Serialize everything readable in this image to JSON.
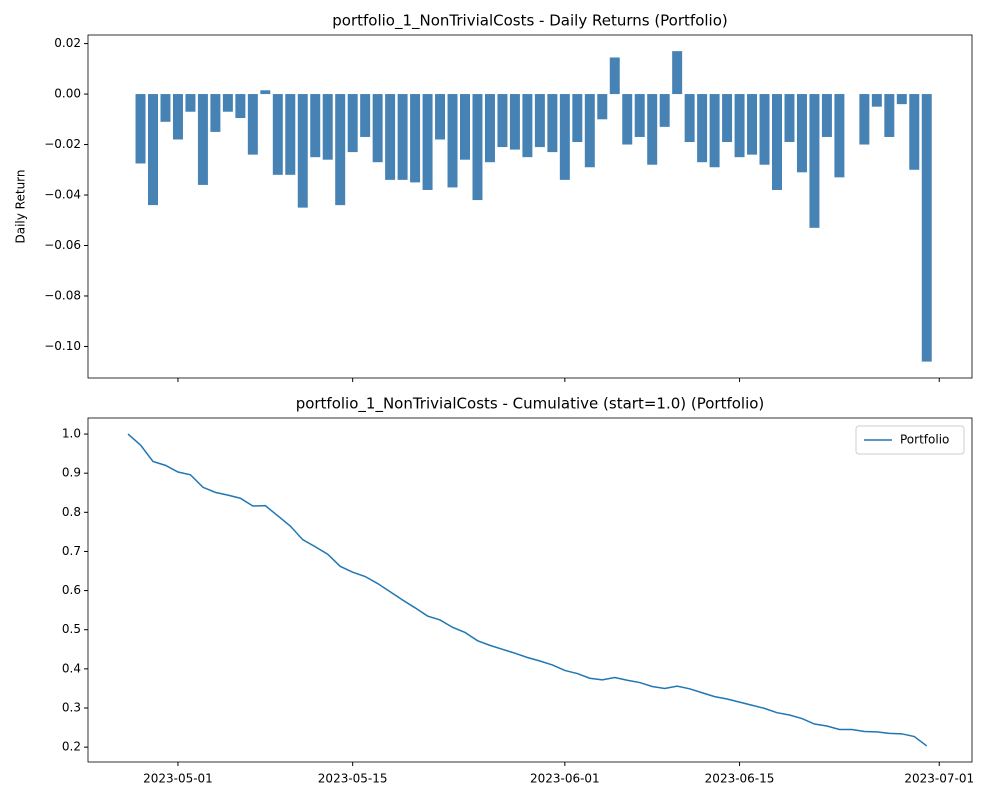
{
  "chart_data": [
    {
      "type": "bar",
      "title": "portfolio_1_NonTrivialCosts - Daily Returns (Portfolio)",
      "y_label": "Daily Return",
      "color": "#4682b4",
      "x": [
        "2023-04-28",
        "2023-04-29",
        "2023-04-30",
        "2023-05-01",
        "2023-05-02",
        "2023-05-03",
        "2023-05-04",
        "2023-05-05",
        "2023-05-06",
        "2023-05-07",
        "2023-05-08",
        "2023-05-09",
        "2023-05-10",
        "2023-05-11",
        "2023-05-12",
        "2023-05-13",
        "2023-05-14",
        "2023-05-15",
        "2023-05-16",
        "2023-05-17",
        "2023-05-18",
        "2023-05-19",
        "2023-05-20",
        "2023-05-21",
        "2023-05-22",
        "2023-05-23",
        "2023-05-24",
        "2023-05-25",
        "2023-05-26",
        "2023-05-27",
        "2023-05-28",
        "2023-05-29",
        "2023-05-30",
        "2023-05-31",
        "2023-06-01",
        "2023-06-02",
        "2023-06-03",
        "2023-06-04",
        "2023-06-05",
        "2023-06-06",
        "2023-06-07",
        "2023-06-08",
        "2023-06-09",
        "2023-06-10",
        "2023-06-11",
        "2023-06-12",
        "2023-06-13",
        "2023-06-14",
        "2023-06-15",
        "2023-06-16",
        "2023-06-17",
        "2023-06-18",
        "2023-06-19",
        "2023-06-20",
        "2023-06-21",
        "2023-06-22",
        "2023-06-23",
        "2023-06-24",
        "2023-06-25",
        "2023-06-26",
        "2023-06-27",
        "2023-06-28",
        "2023-06-29",
        "2023-06-30"
      ],
      "values": [
        -0.0275,
        -0.044,
        -0.011,
        -0.018,
        -0.007,
        -0.036,
        -0.015,
        -0.007,
        -0.0095,
        -0.024,
        0.0015,
        -0.032,
        -0.032,
        -0.045,
        -0.025,
        -0.026,
        -0.044,
        -0.023,
        -0.017,
        -0.027,
        -0.034,
        -0.034,
        -0.035,
        -0.038,
        -0.018,
        -0.037,
        -0.026,
        -0.042,
        -0.027,
        -0.021,
        -0.022,
        -0.025,
        -0.021,
        -0.023,
        -0.034,
        -0.019,
        -0.029,
        -0.01,
        0.0145,
        -0.02,
        -0.017,
        -0.028,
        -0.013,
        0.017,
        -0.019,
        -0.027,
        -0.029,
        -0.019,
        -0.025,
        -0.024,
        -0.028,
        -0.038,
        -0.019,
        -0.031,
        -0.053,
        -0.017,
        -0.033,
        0,
        -0.02,
        -0.005,
        -0.017,
        -0.004,
        -0.03,
        -0.106
      ],
      "xlim": [
        "2023-04-23T19:00Z",
        "2023-07-03T15:00Z"
      ],
      "xticks": [
        "2023-05-01",
        "2023-05-15",
        "2023-06-01",
        "2023-06-15",
        "2023-07-01"
      ],
      "ylim": [
        -0.1125,
        0.0234
      ],
      "yticks": [
        {
          "value": -0.1,
          "label": "−0.10"
        },
        {
          "value": -0.08,
          "label": "−0.08"
        },
        {
          "value": -0.06,
          "label": "−0.06"
        },
        {
          "value": -0.04,
          "label": "−0.04"
        },
        {
          "value": -0.02,
          "label": "−0.02"
        },
        {
          "value": 0,
          "label": "0.00"
        },
        {
          "value": 0.02,
          "label": "0.02"
        }
      ]
    },
    {
      "type": "line",
      "title": "portfolio_1_NonTrivialCosts - Cumulative (start=1.0) (Portfolio)",
      "legend": "upper right",
      "x": [
        "2023-04-27",
        "2023-04-28",
        "2023-04-29",
        "2023-04-30",
        "2023-05-01",
        "2023-05-02",
        "2023-05-03",
        "2023-05-04",
        "2023-05-05",
        "2023-05-06",
        "2023-05-07",
        "2023-05-08",
        "2023-05-09",
        "2023-05-10",
        "2023-05-11",
        "2023-05-12",
        "2023-05-13",
        "2023-05-14",
        "2023-05-15",
        "2023-05-16",
        "2023-05-17",
        "2023-05-18",
        "2023-05-19",
        "2023-05-20",
        "2023-05-21",
        "2023-05-22",
        "2023-05-23",
        "2023-05-24",
        "2023-05-25",
        "2023-05-26",
        "2023-05-27",
        "2023-05-28",
        "2023-05-29",
        "2023-05-30",
        "2023-05-31",
        "2023-06-01",
        "2023-06-02",
        "2023-06-03",
        "2023-06-04",
        "2023-06-05",
        "2023-06-06",
        "2023-06-07",
        "2023-06-08",
        "2023-06-09",
        "2023-06-10",
        "2023-06-11",
        "2023-06-12",
        "2023-06-13",
        "2023-06-14",
        "2023-06-15",
        "2023-06-16",
        "2023-06-17",
        "2023-06-18",
        "2023-06-19",
        "2023-06-20",
        "2023-06-21",
        "2023-06-22",
        "2023-06-23",
        "2023-06-24",
        "2023-06-25",
        "2023-06-26",
        "2023-06-27",
        "2023-06-28",
        "2023-06-29",
        "2023-06-30"
      ],
      "series": [
        {
          "name": "Portfolio",
          "color": "#1f77b4",
          "values": [
            1.0,
            0.972,
            0.93,
            0.92,
            0.903,
            0.896,
            0.864,
            0.851,
            0.844,
            0.836,
            0.816,
            0.817,
            0.791,
            0.765,
            0.73,
            0.712,
            0.693,
            0.662,
            0.647,
            0.636,
            0.618,
            0.597,
            0.576,
            0.556,
            0.535,
            0.525,
            0.506,
            0.493,
            0.472,
            0.46,
            0.45,
            0.44,
            0.429,
            0.42,
            0.41,
            0.396,
            0.388,
            0.376,
            0.372,
            0.378,
            0.371,
            0.365,
            0.355,
            0.35,
            0.356,
            0.349,
            0.339,
            0.329,
            0.323,
            0.315,
            0.307,
            0.299,
            0.288,
            0.282,
            0.273,
            0.259,
            0.254,
            0.245,
            0.245,
            0.24,
            0.239,
            0.235,
            0.234,
            0.227,
            0.203
          ]
        }
      ],
      "xlim": [
        "2023-04-23T19:00Z",
        "2023-07-03T15:00Z"
      ],
      "xticks": [
        "2023-05-01",
        "2023-05-15",
        "2023-06-01",
        "2023-06-15",
        "2023-07-01"
      ],
      "ylim": [
        0.162,
        1.041
      ],
      "yticks": [
        0.2,
        0.3,
        0.4,
        0.5,
        0.6,
        0.7,
        0.8,
        0.9,
        {
          "value": 1.0,
          "label": "1.0"
        }
      ]
    }
  ]
}
